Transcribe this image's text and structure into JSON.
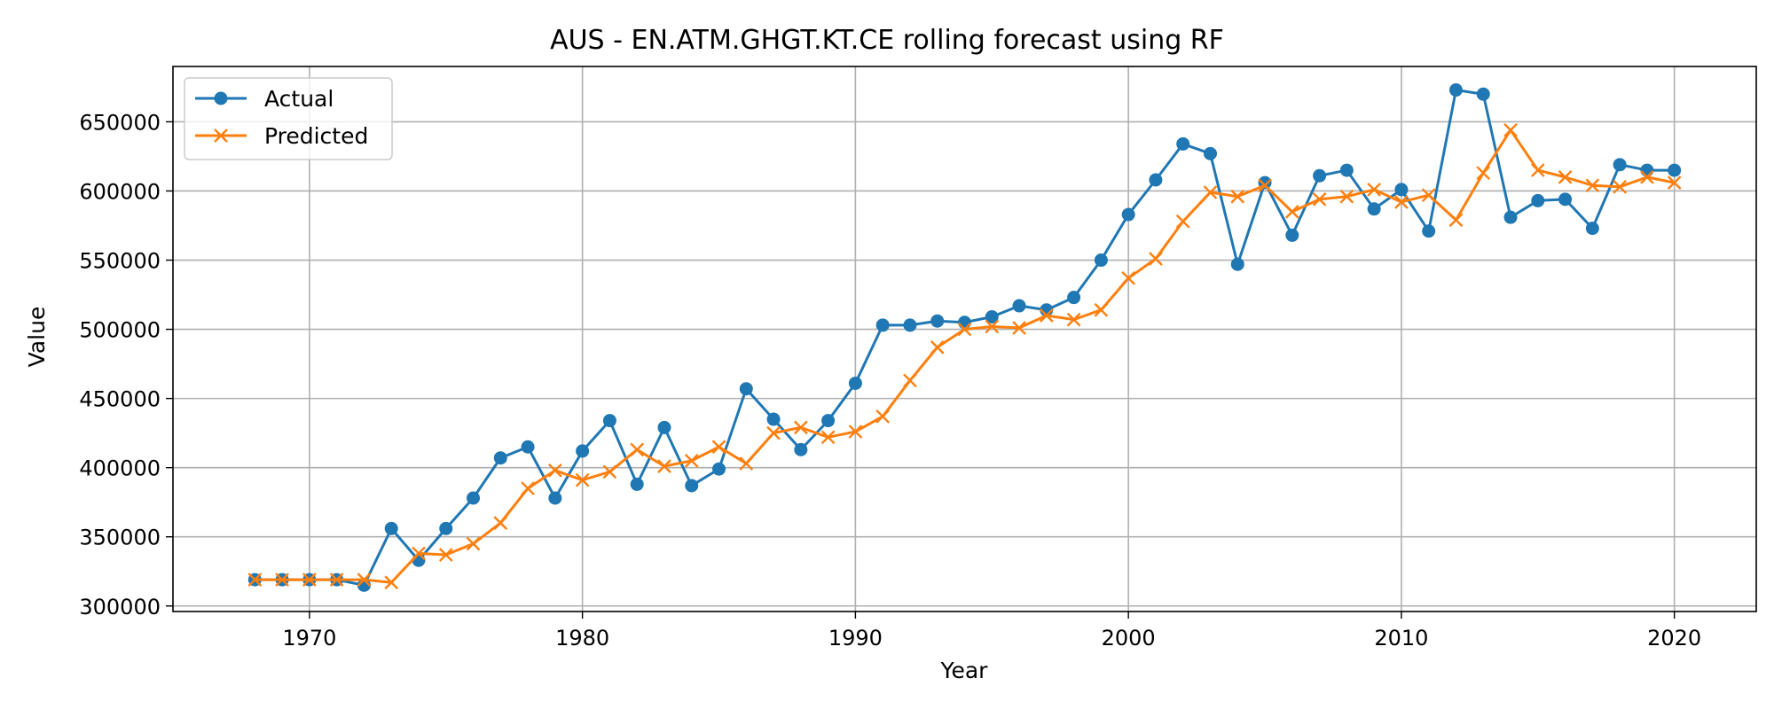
{
  "chart_data": {
    "type": "line",
    "title": "AUS - EN.ATM.GHGT.KT.CE rolling forecast using RF",
    "xlabel": "Year",
    "ylabel": "Value",
    "xlim": [
      1965,
      2023
    ],
    "ylim": [
      296000,
      690000
    ],
    "xticks": [
      1970,
      1980,
      1990,
      2000,
      2010,
      2020
    ],
    "yticks": [
      300000,
      350000,
      400000,
      450000,
      500000,
      550000,
      600000,
      650000
    ],
    "grid": true,
    "legend_position": "top-left",
    "x": [
      1968,
      1969,
      1970,
      1971,
      1972,
      1973,
      1974,
      1975,
      1976,
      1977,
      1978,
      1979,
      1980,
      1981,
      1982,
      1983,
      1984,
      1985,
      1986,
      1987,
      1988,
      1989,
      1990,
      1991,
      1992,
      1993,
      1994,
      1995,
      1996,
      1997,
      1998,
      1999,
      2000,
      2001,
      2002,
      2003,
      2004,
      2005,
      2006,
      2007,
      2008,
      2009,
      2010,
      2011,
      2012,
      2013,
      2014,
      2015,
      2016,
      2017,
      2018,
      2019,
      2020
    ],
    "series": [
      {
        "name": "Actual",
        "color": "#1f77b4",
        "marker": "circle",
        "values": [
          319000,
          319000,
          319000,
          319000,
          315000,
          356000,
          333000,
          356000,
          378000,
          407000,
          415000,
          378000,
          412000,
          434000,
          388000,
          429000,
          387000,
          399000,
          457000,
          435000,
          413000,
          434000,
          461000,
          503000,
          503000,
          506000,
          505000,
          509000,
          517000,
          514000,
          523000,
          550000,
          583000,
          608000,
          634000,
          627000,
          547000,
          606000,
          568000,
          611000,
          615000,
          587000,
          601000,
          571000,
          673000,
          670000,
          581000,
          593000,
          594000,
          573000,
          619000,
          615000,
          615000
        ]
      },
      {
        "name": "Predicted",
        "color": "#ff7f0e",
        "marker": "x",
        "values": [
          319000,
          319000,
          319000,
          319000,
          319000,
          317000,
          338000,
          337000,
          345000,
          360000,
          385000,
          398000,
          391000,
          397000,
          413000,
          401000,
          405000,
          415000,
          403000,
          425000,
          429000,
          422000,
          426000,
          437000,
          463000,
          487000,
          500000,
          502000,
          501000,
          510000,
          507000,
          514000,
          537000,
          551000,
          578000,
          599000,
          596000,
          604000,
          585000,
          594000,
          596000,
          601000,
          592000,
          597000,
          579000,
          613000,
          644000,
          615000,
          610000,
          604000,
          603000,
          610000,
          606000
        ]
      }
    ]
  }
}
